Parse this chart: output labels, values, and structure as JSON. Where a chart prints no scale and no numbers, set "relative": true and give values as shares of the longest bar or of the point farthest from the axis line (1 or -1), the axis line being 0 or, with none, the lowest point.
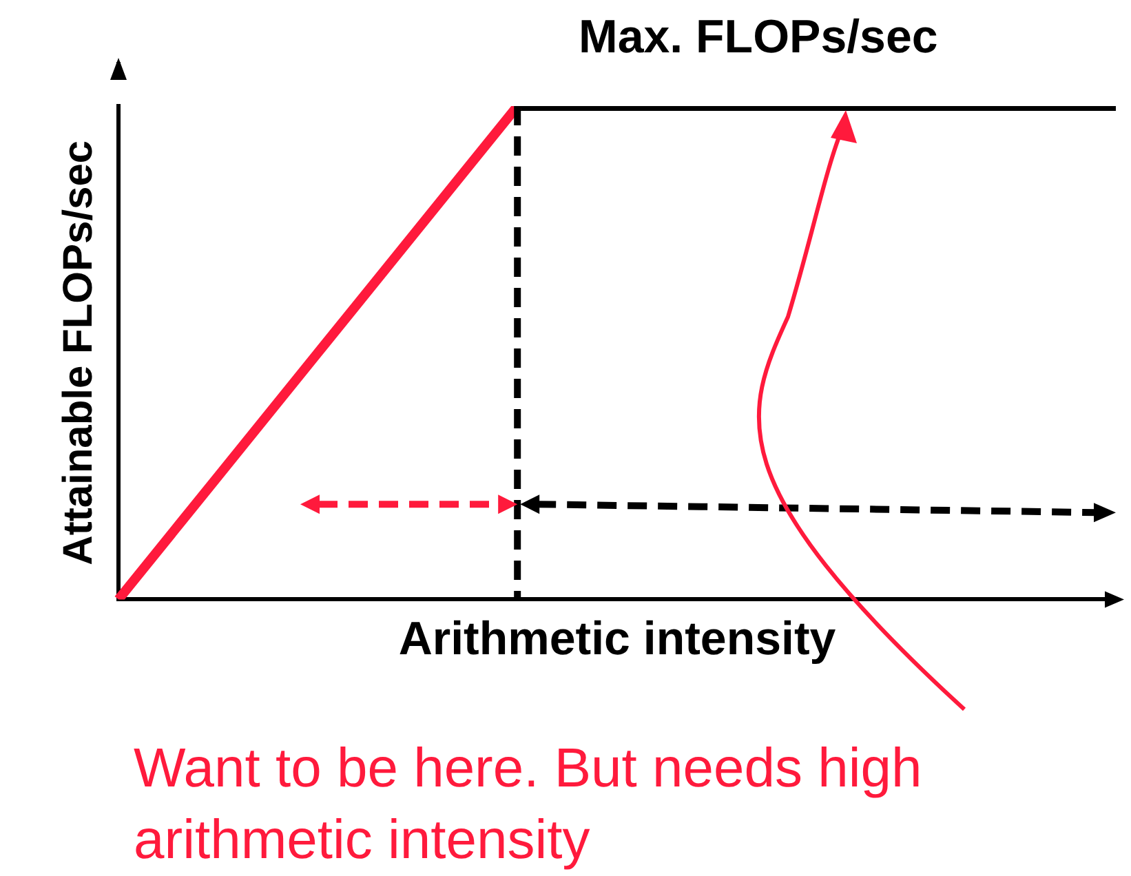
{
  "chart_data": {
    "type": "line",
    "relative": true,
    "xlabel": "Arithmetic intensity",
    "ylabel": "Attainable FLOPs/sec",
    "categories": [
      null,
      null,
      null,
      null,
      null,
      null,
      null,
      null,
      null,
      null,
      null
    ],
    "series": [
      {
        "color": "#ff1a3c",
        "values": [
          0,
          0.25,
          0.5,
          0.75,
          1,
          null,
          null,
          null,
          null,
          null,
          null
        ]
      },
      {
        "color": "#000000",
        "values": [
          null,
          null,
          null,
          null,
          1,
          1,
          1,
          1,
          1,
          1,
          1
        ]
      }
    ],
    "marker": "none",
    "grid": false,
    "legend": false,
    "annotations": [
      "Max. FLOPs/sec",
      "Want to be here. But needs high arithmetic intensity"
    ]
  }
}
